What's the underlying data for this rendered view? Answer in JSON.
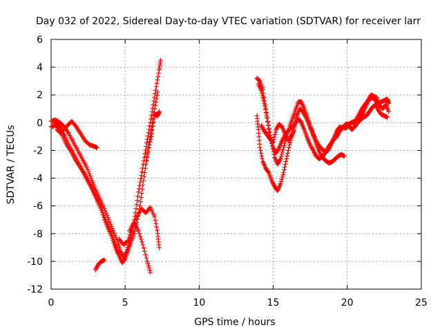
{
  "chart_data": {
    "type": "scatter",
    "title": "Day 032 of 2022, Sidereal Day-to-day VTEC variation (SDTVAR) for receiver larr",
    "xlabel": "GPS time / hours",
    "ylabel": "SDTVAR / TECUs",
    "xlim": [
      0,
      25
    ],
    "ylim": [
      -12,
      6
    ],
    "xticks": [
      "0",
      "5",
      "10",
      "15",
      "20",
      "25"
    ],
    "yticks": [
      "-12",
      "-10",
      "-8",
      "-6",
      "-4",
      "-2",
      "0",
      "2",
      "4",
      "6"
    ],
    "grid": true,
    "marker": "plus",
    "color": "#ff0000",
    "series": [
      {
        "points": [
          [
            0.0,
            0.1
          ],
          [
            0.3,
            0.2
          ],
          [
            0.6,
            0.0
          ],
          [
            0.9,
            -0.3
          ],
          [
            1.2,
            -0.8
          ],
          [
            1.5,
            -1.4
          ],
          [
            1.8,
            -2.0
          ],
          [
            2.1,
            -2.6
          ],
          [
            2.4,
            -3.2
          ],
          [
            2.7,
            -4.0
          ],
          [
            3.0,
            -4.8
          ],
          [
            3.3,
            -5.5
          ],
          [
            3.6,
            -6.2
          ],
          [
            3.9,
            -7.0
          ],
          [
            4.2,
            -7.8
          ],
          [
            4.5,
            -8.6
          ],
          [
            4.7,
            -9.3
          ],
          [
            4.9,
            -9.7
          ],
          [
            5.1,
            -9.3
          ],
          [
            5.3,
            -8.5
          ],
          [
            5.5,
            -7.8
          ],
          [
            5.7,
            -6.5
          ],
          [
            5.9,
            -5.0
          ],
          [
            6.1,
            -3.8
          ],
          [
            6.3,
            -2.5
          ],
          [
            6.5,
            -1.2
          ],
          [
            6.7,
            0.0
          ],
          [
            6.9,
            1.3
          ],
          [
            7.1,
            2.6
          ],
          [
            7.3,
            3.8
          ],
          [
            7.4,
            4.5
          ]
        ]
      },
      {
        "points": [
          [
            0.0,
            -0.3
          ],
          [
            0.3,
            -0.2
          ],
          [
            0.6,
            -0.5
          ],
          [
            0.9,
            -0.9
          ],
          [
            1.2,
            -1.6
          ],
          [
            1.5,
            -2.2
          ],
          [
            1.8,
            -2.8
          ],
          [
            2.1,
            -3.4
          ],
          [
            2.4,
            -4.0
          ],
          [
            2.7,
            -4.6
          ],
          [
            3.0,
            -5.3
          ],
          [
            3.3,
            -6.0
          ],
          [
            3.6,
            -6.8
          ],
          [
            3.9,
            -7.6
          ],
          [
            4.2,
            -8.3
          ],
          [
            4.4,
            -9.0
          ],
          [
            4.6,
            -9.6
          ],
          [
            4.8,
            -10.1
          ],
          [
            5.0,
            -9.8
          ],
          [
            5.2,
            -9.2
          ],
          [
            5.4,
            -8.6
          ],
          [
            5.6,
            -8.0
          ],
          [
            5.8,
            -7.2
          ],
          [
            6.0,
            -6.0
          ],
          [
            6.2,
            -4.5
          ],
          [
            6.4,
            -3.0
          ],
          [
            6.6,
            -1.6
          ],
          [
            6.8,
            -0.3
          ],
          [
            7.0,
            1.0
          ],
          [
            7.2,
            2.2
          ]
        ]
      },
      {
        "points": [
          [
            0.2,
            0.0
          ],
          [
            0.5,
            -0.2
          ],
          [
            0.8,
            -0.6
          ],
          [
            1.1,
            -0.2
          ],
          [
            1.4,
            0.1
          ],
          [
            1.7,
            -0.3
          ],
          [
            2.0,
            -0.8
          ],
          [
            2.3,
            -1.3
          ],
          [
            2.6,
            -1.6
          ],
          [
            2.9,
            -1.7
          ],
          [
            3.1,
            -1.8
          ]
        ]
      },
      {
        "points": [
          [
            0.4,
            -0.5
          ],
          [
            0.7,
            -0.8
          ],
          [
            1.0,
            -1.5
          ],
          [
            1.3,
            -2.0
          ],
          [
            1.6,
            -2.6
          ],
          [
            1.9,
            -3.1
          ],
          [
            2.2,
            -3.6
          ],
          [
            2.5,
            -4.2
          ],
          [
            2.8,
            -4.8
          ],
          [
            3.1,
            -5.5
          ],
          [
            3.4,
            -6.3
          ],
          [
            3.7,
            -7.2
          ],
          [
            4.0,
            -8.0
          ],
          [
            4.3,
            -8.8
          ],
          [
            4.5,
            -9.4
          ]
        ]
      },
      {
        "points": [
          [
            4.6,
            -8.4
          ],
          [
            4.9,
            -8.8
          ],
          [
            5.2,
            -8.5
          ],
          [
            5.5,
            -7.5
          ],
          [
            5.8,
            -6.8
          ],
          [
            6.1,
            -6.2
          ],
          [
            6.4,
            -6.5
          ],
          [
            6.7,
            -6.1
          ],
          [
            7.0,
            -6.8
          ],
          [
            7.2,
            -8.0
          ],
          [
            7.3,
            -9.0
          ]
        ]
      },
      {
        "points": [
          [
            5.3,
            -7.8
          ],
          [
            5.6,
            -7.2
          ],
          [
            5.9,
            -7.8
          ],
          [
            6.2,
            -8.8
          ],
          [
            6.5,
            -10.0
          ],
          [
            6.7,
            -10.8
          ]
        ]
      },
      {
        "points": [
          [
            3.0,
            -10.6
          ],
          [
            3.2,
            -10.2
          ],
          [
            3.4,
            -10.0
          ],
          [
            3.6,
            -9.9
          ]
        ]
      },
      {
        "points": [
          [
            6.4,
            -3.0
          ],
          [
            6.6,
            -1.8
          ],
          [
            6.8,
            -0.8
          ],
          [
            7.0,
            0.6
          ],
          [
            7.2,
            0.5
          ],
          [
            7.3,
            0.8
          ]
        ]
      },
      {
        "points": [
          [
            13.9,
            3.2
          ],
          [
            14.1,
            3.0
          ],
          [
            14.3,
            2.4
          ],
          [
            14.5,
            1.0
          ],
          [
            14.7,
            -0.5
          ],
          [
            14.9,
            -1.5
          ],
          [
            15.1,
            -2.5
          ],
          [
            15.3,
            -3.0
          ],
          [
            15.5,
            -2.6
          ],
          [
            15.7,
            -1.8
          ],
          [
            15.9,
            -1.0
          ],
          [
            16.1,
            -0.3
          ],
          [
            16.3,
            0.3
          ],
          [
            16.5,
            0.9
          ],
          [
            16.7,
            1.5
          ],
          [
            16.9,
            1.5
          ],
          [
            17.1,
            1.0
          ],
          [
            17.3,
            0.4
          ],
          [
            17.5,
            -0.2
          ],
          [
            17.7,
            -0.8
          ],
          [
            17.9,
            -1.3
          ],
          [
            18.1,
            -1.7
          ],
          [
            18.3,
            -1.9
          ],
          [
            18.5,
            -2.1
          ],
          [
            18.7,
            -2.0
          ],
          [
            18.9,
            -1.6
          ],
          [
            19.1,
            -1.1
          ],
          [
            19.3,
            -0.6
          ],
          [
            19.5,
            -0.3
          ],
          [
            19.7,
            -0.4
          ],
          [
            19.9,
            -0.1
          ],
          [
            20.1,
            -0.1
          ],
          [
            20.3,
            0.0
          ],
          [
            20.5,
            0.1
          ],
          [
            20.7,
            0.0
          ],
          [
            20.9,
            0.4
          ],
          [
            21.1,
            0.8
          ],
          [
            21.3,
            1.3
          ],
          [
            21.5,
            1.7
          ],
          [
            21.7,
            1.8
          ],
          [
            21.9,
            1.6
          ],
          [
            22.1,
            1.4
          ],
          [
            22.3,
            1.5
          ],
          [
            22.5,
            1.6
          ],
          [
            22.7,
            1.7
          ],
          [
            22.8,
            1.4
          ]
        ]
      },
      {
        "points": [
          [
            13.9,
            0.5
          ],
          [
            14.0,
            -0.5
          ],
          [
            14.1,
            -1.8
          ],
          [
            14.3,
            -2.8
          ],
          [
            14.5,
            -3.3
          ],
          [
            14.7,
            -3.6
          ],
          [
            14.9,
            -4.2
          ],
          [
            15.1,
            -4.6
          ],
          [
            15.3,
            -4.9
          ],
          [
            15.5,
            -4.4
          ],
          [
            15.7,
            -3.6
          ],
          [
            15.9,
            -2.6
          ],
          [
            16.1,
            -1.6
          ],
          [
            16.3,
            -0.8
          ],
          [
            16.5,
            -0.1
          ],
          [
            16.7,
            0.3
          ],
          [
            16.9,
            0.0
          ],
          [
            17.1,
            -0.5
          ],
          [
            17.3,
            -1.1
          ],
          [
            17.5,
            -1.6
          ],
          [
            17.7,
            -2.0
          ],
          [
            17.9,
            -2.4
          ],
          [
            18.1,
            -2.6
          ],
          [
            18.3,
            -2.5
          ],
          [
            18.5,
            -2.2
          ],
          [
            18.7,
            -1.8
          ],
          [
            18.9,
            -1.5
          ],
          [
            19.1,
            -1.2
          ],
          [
            19.3,
            -1.0
          ],
          [
            19.5,
            -0.6
          ],
          [
            19.7,
            -0.3
          ],
          [
            19.9,
            -0.4
          ],
          [
            20.1,
            -0.2
          ],
          [
            20.3,
            -0.5
          ],
          [
            20.5,
            -0.3
          ],
          [
            20.7,
            0.0
          ],
          [
            20.9,
            0.2
          ],
          [
            21.1,
            0.4
          ],
          [
            21.3,
            0.5
          ],
          [
            21.5,
            0.8
          ],
          [
            21.7,
            1.1
          ],
          [
            21.9,
            1.3
          ],
          [
            22.1,
            0.9
          ],
          [
            22.3,
            0.6
          ],
          [
            22.5,
            0.5
          ],
          [
            22.7,
            0.4
          ]
        ]
      },
      {
        "points": [
          [
            14.0,
            2.8
          ],
          [
            14.2,
            2.3
          ],
          [
            14.4,
            1.4
          ],
          [
            14.6,
            0.3
          ],
          [
            14.8,
            -0.9
          ],
          [
            15.0,
            -1.8
          ],
          [
            15.2,
            -2.2
          ],
          [
            15.4,
            -1.8
          ],
          [
            15.6,
            -1.3
          ],
          [
            15.8,
            -0.9
          ],
          [
            16.0,
            -0.6
          ],
          [
            16.2,
            -0.4
          ],
          [
            16.4,
            -0.2
          ],
          [
            16.6,
            0.5
          ],
          [
            16.8,
            1.0
          ],
          [
            17.0,
            0.8
          ],
          [
            17.2,
            0.4
          ],
          [
            17.4,
            -0.1
          ],
          [
            17.6,
            -0.6
          ],
          [
            17.8,
            -1.2
          ],
          [
            18.0,
            -1.8
          ],
          [
            18.2,
            -2.3
          ],
          [
            18.4,
            -2.6
          ],
          [
            18.6,
            -2.8
          ],
          [
            18.8,
            -2.9
          ],
          [
            19.0,
            -2.8
          ],
          [
            19.2,
            -2.6
          ],
          [
            19.4,
            -2.4
          ],
          [
            19.6,
            -2.3
          ],
          [
            19.8,
            -2.4
          ]
        ]
      },
      {
        "points": [
          [
            14.2,
            -0.2
          ],
          [
            14.4,
            -0.6
          ],
          [
            14.6,
            -0.9
          ],
          [
            14.8,
            -1.2
          ],
          [
            15.0,
            -1.4
          ],
          [
            15.2,
            -0.5
          ],
          [
            15.4,
            -0.1
          ],
          [
            15.6,
            -0.3
          ],
          [
            15.8,
            -0.8
          ],
          [
            16.0,
            -1.3
          ],
          [
            16.2,
            -1.0
          ],
          [
            16.4,
            -0.6
          ]
        ]
      },
      {
        "points": [
          [
            20.4,
            -0.1
          ],
          [
            20.6,
            0.2
          ],
          [
            20.8,
            0.6
          ],
          [
            21.0,
            1.0
          ],
          [
            21.2,
            1.3
          ],
          [
            21.4,
            1.6
          ],
          [
            21.6,
            2.0
          ],
          [
            21.8,
            1.9
          ],
          [
            22.0,
            1.8
          ],
          [
            22.2,
            1.2
          ],
          [
            22.4,
            1.0
          ],
          [
            22.6,
            1.3
          ],
          [
            22.8,
            0.8
          ]
        ]
      }
    ]
  }
}
